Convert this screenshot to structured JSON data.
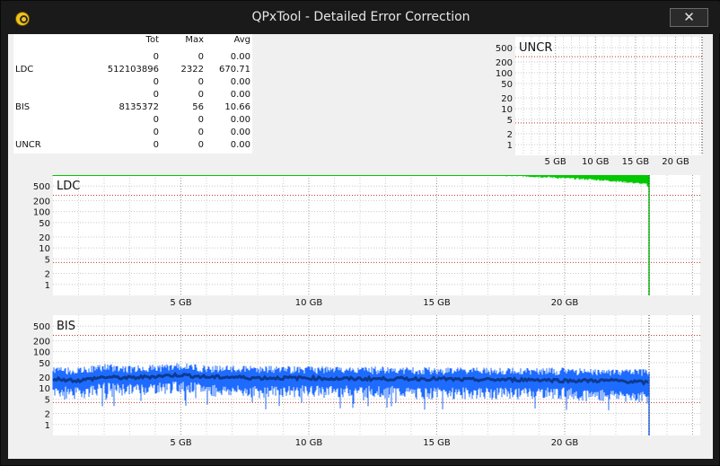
{
  "window": {
    "title": "QPxTool - Detailed Error Correction",
    "close_label": "✕"
  },
  "stats": {
    "headers": {
      "tot": "Tot",
      "max": "Max",
      "avg": "Avg"
    },
    "rows": [
      {
        "label": "",
        "tot": "0",
        "max": "0",
        "avg": "0.00"
      },
      {
        "label": "LDC",
        "tot": "512103896",
        "max": "2322",
        "avg": "670.71"
      },
      {
        "label": "",
        "tot": "0",
        "max": "0",
        "avg": "0.00"
      },
      {
        "label": "",
        "tot": "0",
        "max": "0",
        "avg": "0.00"
      },
      {
        "label": "BIS",
        "tot": "8135372",
        "max": "56",
        "avg": "10.66"
      },
      {
        "label": "",
        "tot": "0",
        "max": "0",
        "avg": "0.00"
      },
      {
        "label": "",
        "tot": "0",
        "max": "0",
        "avg": "0.00"
      },
      {
        "label": "UNCR",
        "tot": "0",
        "max": "0",
        "avg": "0.00"
      }
    ]
  },
  "chart_data": [
    {
      "type": "area",
      "title": "UNCR",
      "x_unit": "GB",
      "xlim": [
        0,
        23.3
      ],
      "y_scale": "log",
      "ylim": [
        0.5,
        1000
      ],
      "y_ticks": [
        1,
        2,
        5,
        10,
        20,
        50,
        100,
        200,
        500
      ],
      "x_ticks": [
        5,
        10,
        15,
        20
      ],
      "x_tick_labels": [
        "5 GB",
        "10 GB",
        "15 GB",
        "20 GB"
      ],
      "threshold_lines": [
        4,
        280
      ],
      "series": [
        {
          "color": "#00aa00",
          "x": [
            0,
            23.3
          ],
          "y": [
            0,
            0
          ]
        }
      ]
    },
    {
      "type": "area",
      "title": "LDC",
      "x_unit": "GB",
      "xlim": [
        0,
        25.3
      ],
      "y_scale": "log",
      "ylim": [
        0.5,
        1000
      ],
      "y_ticks": [
        1,
        2,
        5,
        10,
        20,
        50,
        100,
        200,
        500
      ],
      "x_ticks": [
        5,
        10,
        15,
        20
      ],
      "x_tick_labels": [
        "5 GB",
        "10 GB",
        "15 GB",
        "20 GB"
      ],
      "threshold_lines": [
        4,
        280
      ],
      "series": [
        {
          "color": "#00c800",
          "x": [
            0,
            0.5,
            1,
            2,
            3,
            4,
            5,
            6,
            7,
            8,
            9,
            10,
            11,
            12,
            13,
            14,
            15,
            16,
            17,
            18,
            19,
            20,
            21,
            22,
            23.2,
            23.3
          ],
          "y": [
            1100,
            1000,
            1050,
            1100,
            1150,
            1150,
            1200,
            1150,
            1150,
            1150,
            1150,
            1150,
            1150,
            1100,
            1100,
            1100,
            1100,
            1050,
            1000,
            950,
            900,
            820,
            760,
            680,
            560,
            400
          ]
        }
      ]
    },
    {
      "type": "area",
      "title": "BIS",
      "x_unit": "GB",
      "xlim": [
        0,
        25.3
      ],
      "y_scale": "log",
      "ylim": [
        0.5,
        1000
      ],
      "y_ticks": [
        1,
        2,
        5,
        10,
        20,
        50,
        100,
        200,
        500
      ],
      "x_ticks": [
        5,
        10,
        15,
        20
      ],
      "x_tick_labels": [
        "5 GB",
        "10 GB",
        "15 GB",
        "20 GB"
      ],
      "threshold_lines": [
        4,
        280
      ],
      "series": [
        {
          "name_hidden": "",
          "color": "#1e6bff",
          "x": [
            0,
            1,
            2,
            3,
            4,
            5,
            6,
            7,
            8,
            9,
            10,
            11,
            12,
            13,
            14,
            15,
            16,
            17,
            18,
            19,
            20,
            21,
            22,
            23.3
          ],
          "y": [
            30,
            28,
            36,
            32,
            34,
            38,
            33,
            32,
            32,
            31,
            31,
            30,
            30,
            30,
            29,
            29,
            29,
            28,
            28,
            28,
            28,
            27,
            27,
            25
          ]
        },
        {
          "color": "#1e6bff",
          "x": [
            0,
            1,
            2,
            3,
            4,
            5,
            6,
            7,
            8,
            9,
            10,
            11,
            12,
            13,
            14,
            15,
            16,
            17,
            18,
            19,
            20,
            21,
            22,
            23.3
          ],
          "y": [
            9,
            8,
            11,
            10,
            11,
            12,
            10,
            9,
            9,
            9,
            9,
            9,
            9,
            9,
            8,
            8,
            8,
            8,
            8,
            8,
            8,
            7,
            7,
            6
          ]
        },
        {
          "color": "#0a2a6a",
          "x": [
            0,
            1,
            2,
            3,
            4,
            5,
            6,
            7,
            8,
            9,
            10,
            11,
            12,
            13,
            14,
            15,
            16,
            17,
            18,
            19,
            20,
            21,
            22,
            23.3
          ],
          "y": [
            18,
            16,
            20,
            19,
            21,
            23,
            20,
            20,
            19,
            19,
            19,
            18,
            18,
            18,
            18,
            18,
            17,
            17,
            17,
            17,
            16,
            16,
            16,
            14
          ]
        }
      ]
    }
  ]
}
